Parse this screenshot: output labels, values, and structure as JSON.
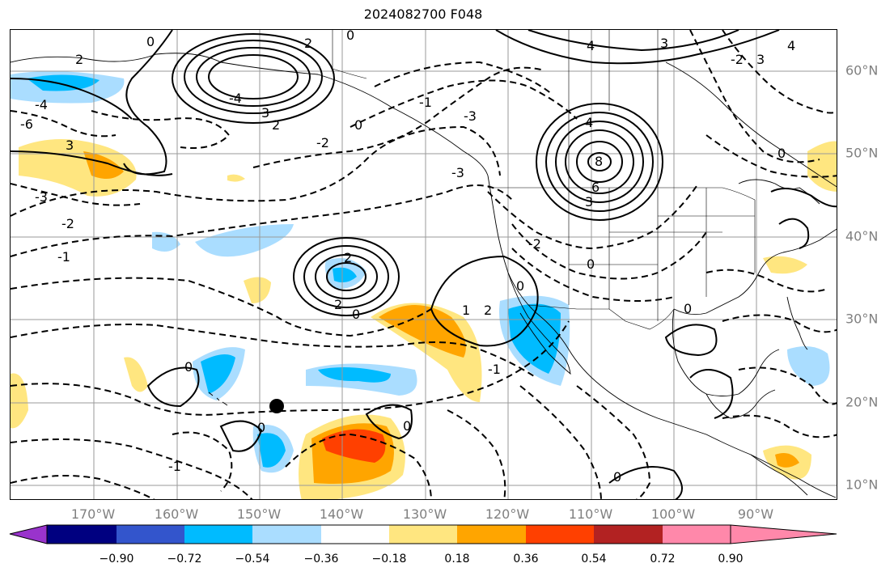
{
  "title": "2024082700 F048",
  "lon_labels": [
    "170°W",
    "160°W",
    "150°W",
    "140°W",
    "130°W",
    "120°W",
    "110°W",
    "100°W",
    "90°W"
  ],
  "lat_labels": [
    "60°N",
    "50°N",
    "40°N",
    "30°N",
    "20°N",
    "10°N"
  ],
  "colorbar": {
    "colors": [
      "#9933cc",
      "#000080",
      "#3355cc",
      "#00bbff",
      "#aaddff",
      "#ffffff",
      "#ffe680",
      "#ffa500",
      "#ff4000",
      "#b22222",
      "#ff88aa"
    ],
    "ticks": [
      "−0.90",
      "−0.72",
      "−0.54",
      "−0.36",
      "−0.18",
      "0.18",
      "0.36",
      "0.54",
      "0.72",
      "0.90"
    ]
  },
  "contour_labels": [
    {
      "text": "0"
    },
    {
      "text": "2"
    },
    {
      "text": "4"
    },
    {
      "text": "3"
    },
    {
      "text": "2"
    },
    {
      "text": "0"
    },
    {
      "text": "-2"
    },
    {
      "text": "3"
    },
    {
      "text": "-4"
    },
    {
      "text": "4"
    },
    {
      "text": "8"
    },
    {
      "text": "6"
    },
    {
      "text": "3"
    },
    {
      "text": "2"
    },
    {
      "text": "0"
    },
    {
      "text": "2"
    },
    {
      "text": "0"
    },
    {
      "text": "-1"
    },
    {
      "text": "-2"
    },
    {
      "text": "-1"
    },
    {
      "text": "1"
    },
    {
      "text": "2"
    },
    {
      "text": "-1"
    },
    {
      "text": "0"
    },
    {
      "text": "0"
    },
    {
      "text": "0"
    },
    {
      "text": "0"
    },
    {
      "text": "-2"
    },
    {
      "text": "-3"
    },
    {
      "text": "3"
    },
    {
      "text": "-4"
    },
    {
      "text": "-6"
    },
    {
      "text": "0"
    },
    {
      "text": "-3"
    },
    {
      "text": "-2"
    },
    {
      "text": "0"
    },
    {
      "text": "0"
    },
    {
      "text": "3"
    },
    {
      "text": "2"
    },
    {
      "text": "4"
    },
    {
      "text": "-3"
    },
    {
      "text": "-1"
    },
    {
      "text": "0"
    }
  ]
}
